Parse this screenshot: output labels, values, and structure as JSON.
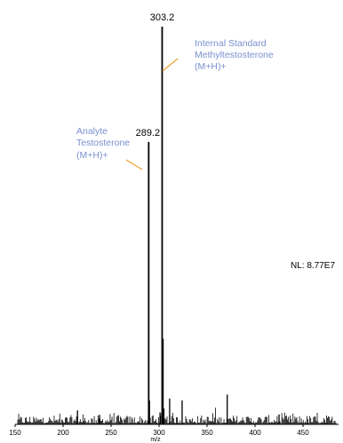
{
  "chart_data": {
    "type": "line",
    "title": "",
    "xlabel": "m/z",
    "ylabel": "",
    "xlim": [
      150,
      487
    ],
    "ylim": [
      0,
      100
    ],
    "x_ticks": [
      "150",
      "200",
      "250",
      "300",
      "350",
      "400",
      "450"
    ],
    "normalization_label": "NL: 8.77E7",
    "colors": {
      "axis": "#000000",
      "spectrum": "#000000",
      "annotation_text": "#7a8fd0",
      "leader_line": "#f0a030"
    },
    "major_peaks": [
      {
        "x": 303.2,
        "y": 100,
        "label": "303.2"
      },
      {
        "x": 289.2,
        "y": 71,
        "label": "289.2"
      }
    ],
    "minor_peaks": [
      {
        "x": 215,
        "y": 3.5
      },
      {
        "x": 238,
        "y": 2.4
      },
      {
        "x": 290,
        "y": 6
      },
      {
        "x": 301,
        "y": 3
      },
      {
        "x": 304.2,
        "y": 21.5
      },
      {
        "x": 305,
        "y": 4
      },
      {
        "x": 311,
        "y": 6.5
      },
      {
        "x": 324,
        "y": 6
      },
      {
        "x": 371,
        "y": 7.5
      },
      {
        "x": 425,
        "y": 2.5
      }
    ],
    "annotations": [
      {
        "lines": [
          "Internal Standard",
          "Methyltestosterone",
          "(M+H)+"
        ],
        "peak": "303.2"
      },
      {
        "lines": [
          "Analyte",
          "Testosterone",
          "(M+H)+"
        ],
        "peak": "289.2"
      }
    ]
  }
}
